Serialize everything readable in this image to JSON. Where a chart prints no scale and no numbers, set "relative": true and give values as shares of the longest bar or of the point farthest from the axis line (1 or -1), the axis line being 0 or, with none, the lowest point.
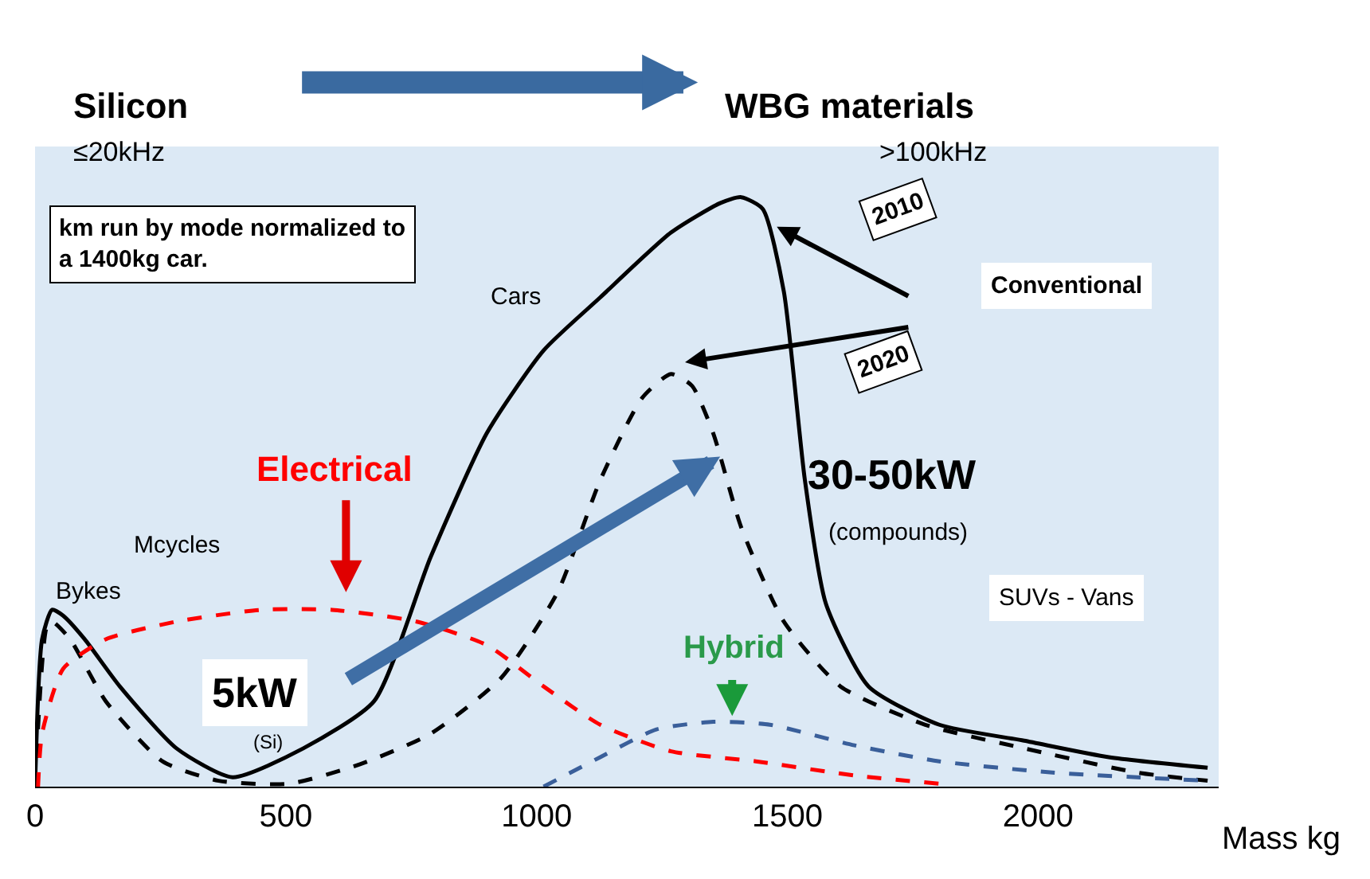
{
  "chart_data": {
    "type": "line",
    "relative": true,
    "xlabel": "Mass kg",
    "xlim": [
      0,
      2360
    ],
    "xticks": [
      0,
      500,
      1000,
      1500,
      2000
    ],
    "legend": false,
    "grid": false,
    "series": [
      {
        "name": "2010",
        "color": "#000000",
        "line_style": "solid",
        "x": [
          0,
          14,
          34,
          56,
          99,
          169,
          282,
          394,
          535,
          676,
          789,
          901,
          1014,
          1127,
          1268,
          1366,
          1408,
          1451,
          1493,
          1535,
          1577,
          1662,
          1803,
          1972,
          2141,
          2338
        ],
        "values": [
          0,
          0.25,
          0.3,
          0.29,
          0.25,
          0.17,
          0.065,
          0.016,
          0.065,
          0.145,
          0.39,
          0.6,
          0.74,
          0.83,
          0.94,
          0.99,
          1.0,
          0.98,
          0.84,
          0.52,
          0.31,
          0.17,
          0.105,
          0.078,
          0.05,
          0.032
        ]
      },
      {
        "name": "2020",
        "color": "#000000",
        "line_style": "dashed",
        "x": [
          0,
          23,
          34,
          70,
          141,
          254,
          366,
          507,
          648,
          789,
          930,
          1042,
          1127,
          1211,
          1268,
          1310,
          1352,
          1408,
          1493,
          1606,
          1775,
          1972,
          2197,
          2338
        ],
        "values": [
          0,
          0.27,
          0.28,
          0.25,
          0.145,
          0.043,
          0.01,
          0.005,
          0.038,
          0.09,
          0.185,
          0.33,
          0.52,
          0.66,
          0.7,
          0.68,
          0.6,
          0.44,
          0.28,
          0.17,
          0.105,
          0.065,
          0.024,
          0.01
        ]
      },
      {
        "name": "Electrical",
        "color": "#ff0000",
        "line_style": "dashed",
        "x": [
          6,
          14,
          56,
          141,
          282,
          451,
          592,
          761,
          901,
          1014,
          1127,
          1268,
          1437,
          1634,
          1803
        ],
        "values": [
          0,
          0.09,
          0.2,
          0.25,
          0.28,
          0.3,
          0.3,
          0.28,
          0.24,
          0.17,
          0.105,
          0.06,
          0.043,
          0.019,
          0.005
        ]
      },
      {
        "name": "Hybrid",
        "color": "#3a5f9a",
        "line_style": "dashed",
        "x": [
          1014,
          1127,
          1239,
          1352,
          1465,
          1634,
          1803,
          2028,
          2338
        ],
        "values": [
          0,
          0.05,
          0.097,
          0.11,
          0.105,
          0.07,
          0.043,
          0.024,
          0.01
        ]
      }
    ],
    "annotations": [
      "Silicon",
      "≤20kHz",
      "WBG materials",
      ">100kHz",
      "km run by mode normalized to\na 1400kg car.",
      "Cars",
      "Mcycles",
      "Bykes",
      "5kW",
      "(Si)",
      "30-50kW",
      "(compounds)",
      "SUVs - Vans",
      "Conventional"
    ]
  }
}
